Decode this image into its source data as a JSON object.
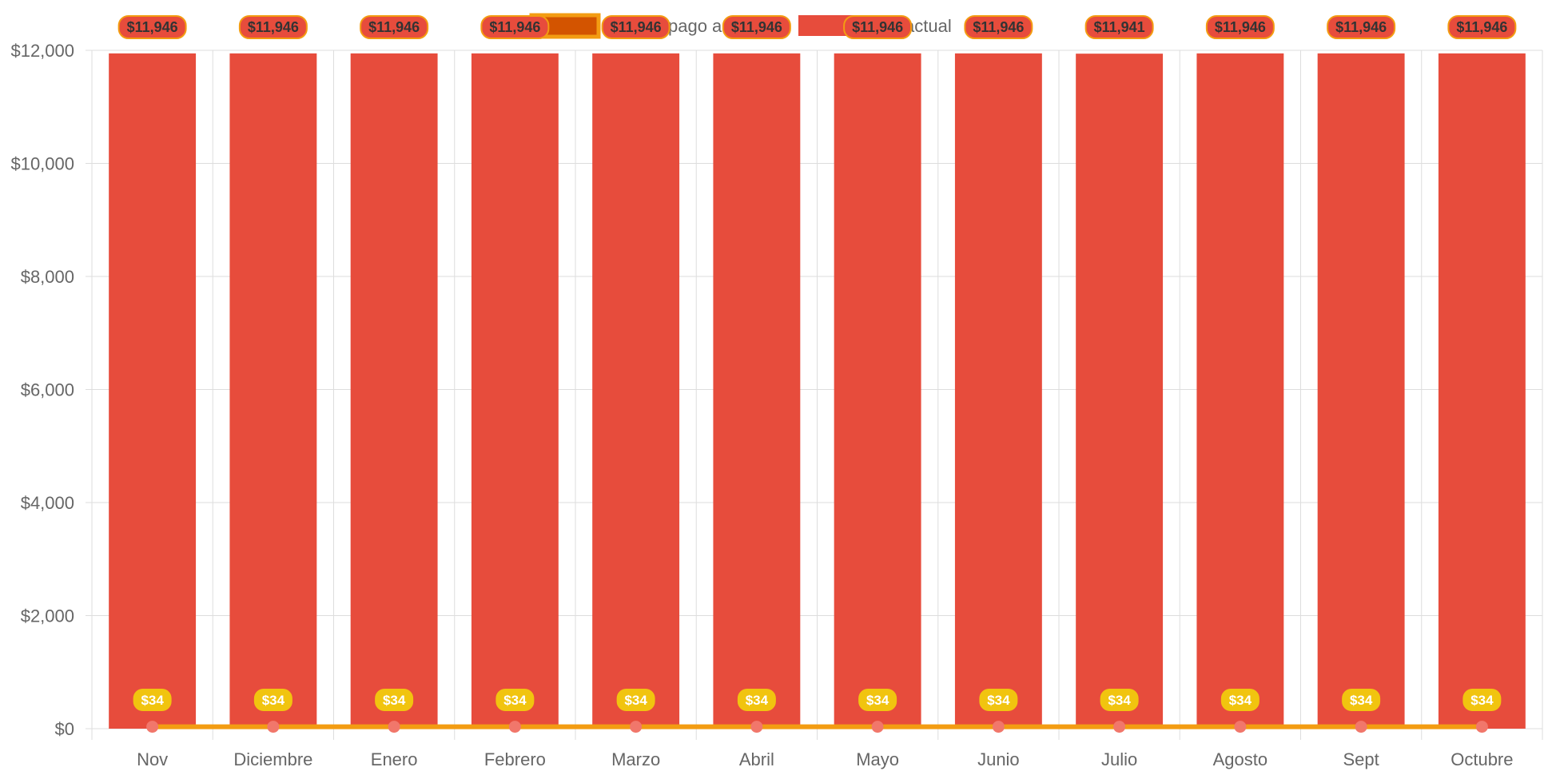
{
  "chart_data": {
    "type": "bar",
    "categories": [
      "Nov",
      "Diciembre",
      "Enero",
      "Febrero",
      "Marzo",
      "Abril",
      "Mayo",
      "Junio",
      "Julio",
      "Agosto",
      "Sept",
      "Octubre"
    ],
    "series": [
      {
        "name": "pago actual",
        "kind": "bar",
        "color": "#e74c3c",
        "values": [
          11946,
          11946,
          11946,
          11946,
          11946,
          11946,
          11946,
          11946,
          11941,
          11946,
          11946,
          11946
        ],
        "labels": [
          "$11,946",
          "$11,946",
          "$11,946",
          "$11,946",
          "$11,946",
          "$11,946",
          "$11,946",
          "$11,946",
          "$11,941",
          "$11,946",
          "$11,946",
          "$11,946"
        ]
      },
      {
        "name": "",
        "kind": "line",
        "color": "#f39c12",
        "point_color": "#f1776b",
        "values": [
          34,
          34,
          34,
          34,
          34,
          34,
          34,
          34,
          34,
          34,
          34,
          34
        ],
        "labels": [
          "$34",
          "$34",
          "$34",
          "$34",
          "$34",
          "$34",
          "$34",
          "$34",
          "$34",
          "$34",
          "$34",
          "$34"
        ]
      }
    ],
    "legend": {
      "position": "top-center",
      "items": [
        {
          "text": "pago a",
          "swatch_color": "#d35400",
          "border_color": "#f39c12"
        },
        {
          "text": "actual",
          "swatch_color": "#e74c3c",
          "border_color": "#e74c3c"
        }
      ]
    },
    "y_ticks": [
      0,
      2000,
      4000,
      6000,
      8000,
      10000,
      12000
    ],
    "y_tick_labels": [
      "$0",
      "$2,000",
      "$4,000",
      "$6,000",
      "$8,000",
      "$10,000",
      "$12,000"
    ],
    "ylim": [
      0,
      12000
    ],
    "grid": true,
    "title": "",
    "xlabel": "",
    "ylabel": "",
    "colors": {
      "grid": "#dddddd",
      "bar_label_bg": "#e74c3c",
      "bar_label_border": "#f39c12",
      "line_label_bg": "#f1c40f"
    }
  }
}
